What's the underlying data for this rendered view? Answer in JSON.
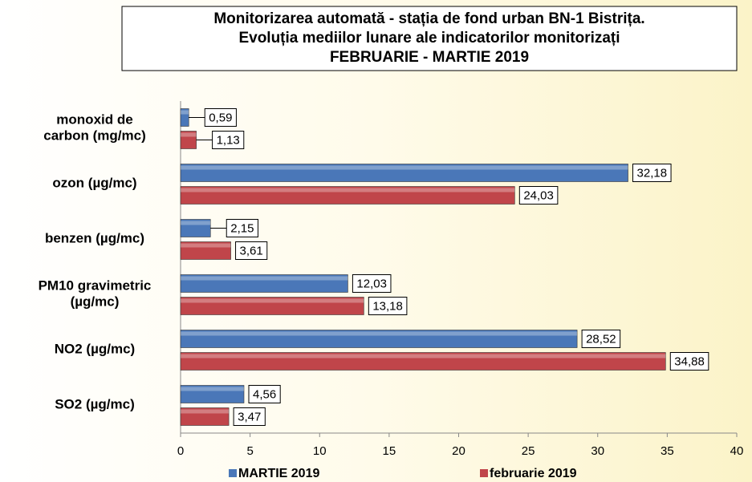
{
  "chart_data": {
    "type": "bar",
    "orientation": "horizontal",
    "title": [
      "Monitorizarea automată - stația de fond urban BN-1 Bistrița.",
      "Evoluția mediilor lunare ale indicatorilor monitorizați",
      "FEBRUARIE  - MARTIE 2019"
    ],
    "categories": [
      "monoxid de\ncarbon (mg/mc)",
      "ozon (µg/mc)",
      "benzen (µg/mc)",
      "PM10 gravimetric\n(µg/mc)",
      "NO2 (µg/mc)",
      "SO2 (µg/mc)"
    ],
    "series": [
      {
        "name": "MARTIE 2019",
        "color": "#4a77b8",
        "values": [
          0.59,
          32.18,
          2.15,
          12.03,
          28.52,
          4.56
        ],
        "value_labels": [
          "0,59",
          "32,18",
          "2,15",
          "12,03",
          "28,52",
          "4,56"
        ]
      },
      {
        "name": "februarie 2019",
        "color": "#c0454a",
        "values": [
          1.13,
          24.03,
          3.61,
          13.18,
          34.88,
          3.47
        ],
        "value_labels": [
          "1,13",
          "24,03",
          "3,61",
          "13,18",
          "34,88",
          "3,47"
        ]
      }
    ],
    "xlim": [
      0,
      40
    ],
    "xticks": [
      0,
      5,
      10,
      15,
      20,
      25,
      30,
      35,
      40
    ],
    "legend": "bottom"
  }
}
